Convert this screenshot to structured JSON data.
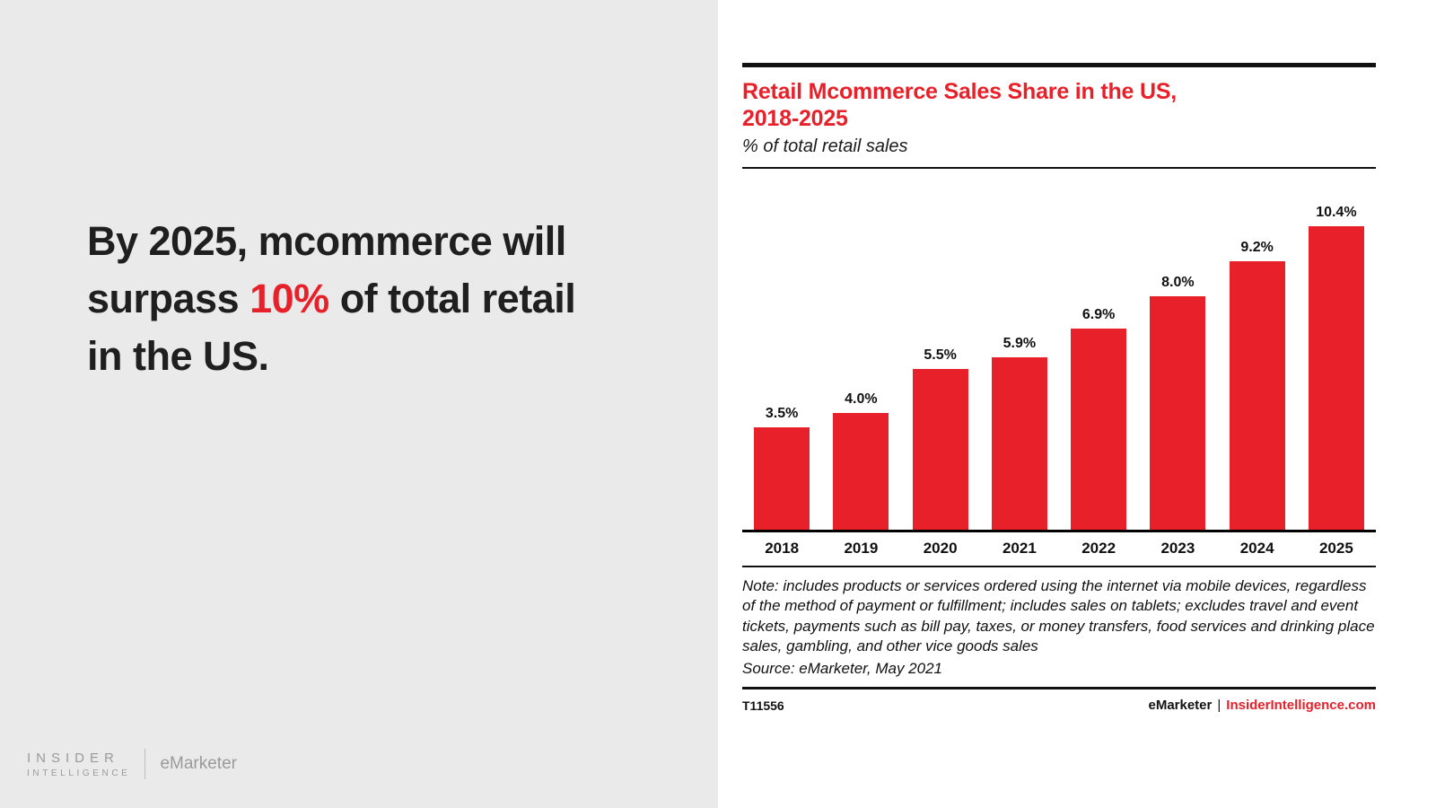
{
  "left_panel": {
    "headline_before": "By 2025, mcommerce will surpass ",
    "headline_highlight": "10%",
    "headline_after": " of total retail in the US."
  },
  "branding": {
    "insider_line1": "INSIDER",
    "insider_line2": "INTELLIGENCE",
    "emarketer": "eMarketer"
  },
  "chart": {
    "title_line1": "Retail Mcommerce Sales Share in the US,",
    "title_line2": "2018-2025",
    "subtitle": "% of total retail sales",
    "note": "Note: includes products or services ordered using the internet via mobile devices, regardless of the method of payment or fulfillment; includes sales on tablets; excludes travel and event tickets, payments such as bill pay, taxes, or money transfers, food services and drinking place sales, gambling, and other vice goods sales",
    "source": "Source: eMarketer, May 2021"
  },
  "chart_data": {
    "type": "bar",
    "categories": [
      "2018",
      "2019",
      "2020",
      "2021",
      "2022",
      "2023",
      "2024",
      "2025"
    ],
    "values": [
      3.5,
      4.0,
      5.5,
      5.9,
      6.9,
      8.0,
      9.2,
      10.4
    ],
    "value_labels": [
      "3.5%",
      "4.0%",
      "5.5%",
      "5.9%",
      "6.9%",
      "8.0%",
      "9.2%",
      "10.4%"
    ],
    "title": "Retail Mcommerce Sales Share in the US, 2018-2025",
    "xlabel": "",
    "ylabel": "% of total retail sales",
    "ylim": [
      0,
      11
    ],
    "bar_color": "#e8202a",
    "grid": false,
    "legend": "none"
  },
  "footer": {
    "chart_id": "T11556",
    "brand": "eMarketer",
    "divider": "|",
    "site": "InsiderIntelligence.com"
  },
  "colors": {
    "accent_red": "#e8202a",
    "left_background": "#eaeaea",
    "rule_black": "#111111"
  }
}
